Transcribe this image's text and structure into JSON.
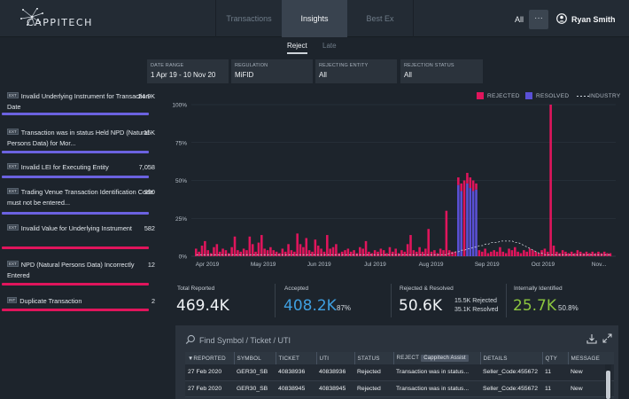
{
  "header": {
    "brand": "CAPPITECH",
    "tabs": [
      "Transactions",
      "Insights",
      "Best Ex"
    ],
    "scope": "All",
    "more": "···",
    "user": "Ryan Smith"
  },
  "subtabs": [
    "Reject",
    "Late"
  ],
  "filters": [
    {
      "label": "DATE RANGE",
      "value": "1 Apr 19 - 10 Nov 20"
    },
    {
      "label": "REGULATION",
      "value": "MiFID"
    },
    {
      "label": "REJECTING ENTITY",
      "value": "All"
    },
    {
      "label": "REJECTION STATUS",
      "value": "All"
    }
  ],
  "reject_reasons": [
    {
      "badge": "EXT",
      "text": "Invalid Underlying Instrument for Transaction Date",
      "count": "24.9K",
      "bar": "blue",
      "fill": 1.0
    },
    {
      "badge": "EXT",
      "text": "Transaction was in status Held NPD (Natural Persons Data) for Mor...",
      "count": "15K",
      "bar": "blue",
      "fill": 1.0
    },
    {
      "badge": "EXT",
      "text": "Invalid LEI for Executing Entity",
      "count": "7,058",
      "bar": "blue",
      "fill": 1.0
    },
    {
      "badge": "EXT",
      "text": "Trading Venue Transaction Identification Code must not be entered...",
      "count": "990",
      "bar": "blue",
      "fill": 1.0
    },
    {
      "badge": "EXT",
      "text": "Invalid Value for Underlying Instrument",
      "count": "582",
      "bar": "red",
      "fill": 1.0
    },
    {
      "badge": "EXT",
      "text": "NPD (Natural Persons Data) Incorrectly Entered",
      "count": "12",
      "bar": "red",
      "fill": 1.0
    },
    {
      "badge": "INT",
      "text": "Duplicate Transaction",
      "count": "2",
      "bar": "red",
      "fill": 1.0
    }
  ],
  "legend": {
    "rejected": "REJECTED",
    "resolved": "RESOLVED",
    "industry": "INDUSTRY"
  },
  "colors": {
    "rejected": "#e0155c",
    "resolved": "#5a50d6",
    "industry": "#cfd6de",
    "accepted": "#3f9fe0",
    "internal": "#8cc63f"
  },
  "chart_data": {
    "type": "bar",
    "y_unit": "%",
    "ylim": [
      0,
      100
    ],
    "y_ticks": [
      "100%",
      "75%",
      "50%",
      "25%",
      "0%"
    ],
    "x_ticks": [
      "Apr 2019",
      "May 2019",
      "Jun 2019",
      "Jul 2019",
      "Aug 2019",
      "Sep 2019",
      "Oct 2019",
      "Nov..."
    ],
    "series": [
      {
        "name": "REJECTED",
        "values": [
          5,
          3,
          7,
          10,
          4,
          2,
          6,
          8,
          3,
          5,
          4,
          2,
          6,
          13,
          4,
          3,
          5,
          4,
          13,
          8,
          3,
          9,
          14,
          5,
          4,
          6,
          4,
          3,
          2,
          5,
          3,
          8,
          4,
          3,
          15,
          8,
          6,
          12,
          4,
          3,
          11,
          7,
          5,
          3,
          14,
          5,
          6,
          8,
          2,
          3,
          4,
          5,
          3,
          4,
          2,
          6,
          5,
          10,
          3,
          2,
          4,
          3,
          5,
          4,
          2,
          6,
          3,
          5,
          2,
          4,
          3,
          8,
          14,
          4,
          3,
          6,
          3,
          5,
          18,
          3,
          4,
          2,
          5,
          4,
          30,
          4,
          3,
          3,
          52,
          48,
          50,
          55,
          52,
          50,
          48,
          4,
          3,
          5,
          2,
          3,
          4,
          3,
          6,
          3,
          2,
          5,
          4,
          6,
          3,
          2,
          4,
          3,
          5,
          4,
          3,
          2,
          4,
          5,
          3,
          100,
          7,
          3,
          2,
          4,
          3,
          2,
          3,
          2,
          4,
          3,
          2,
          3,
          2,
          3,
          2,
          3,
          2,
          3,
          2,
          2
        ]
      },
      {
        "name": "RESOLVED",
        "values": [
          0,
          0,
          0,
          0,
          0,
          0,
          0,
          0,
          0,
          0,
          0,
          0,
          0,
          0,
          0,
          0,
          0,
          0,
          0,
          0,
          0,
          0,
          0,
          0,
          0,
          0,
          0,
          0,
          0,
          0,
          0,
          0,
          0,
          0,
          0,
          0,
          0,
          0,
          0,
          0,
          0,
          0,
          0,
          0,
          0,
          0,
          0,
          0,
          0,
          0,
          0,
          0,
          0,
          0,
          0,
          0,
          0,
          0,
          0,
          0,
          0,
          0,
          0,
          0,
          0,
          0,
          0,
          0,
          0,
          0,
          0,
          0,
          0,
          0,
          0,
          0,
          0,
          0,
          0,
          0,
          0,
          0,
          0,
          0,
          0,
          0,
          0,
          0,
          47,
          43,
          0,
          48,
          45,
          43,
          44,
          0,
          0,
          0,
          0,
          0,
          0,
          0,
          0,
          0,
          0,
          0,
          0,
          0,
          0,
          0,
          0,
          0,
          0,
          0,
          0,
          0,
          0,
          0,
          0,
          0,
          0,
          0,
          0,
          0,
          0,
          0,
          0,
          0,
          0,
          0,
          0,
          0,
          0,
          0,
          0,
          0,
          0,
          0,
          0,
          0
        ]
      },
      {
        "name": "INDUSTRY",
        "values": [
          1,
          1,
          1,
          1,
          1,
          1,
          1,
          1,
          1,
          1,
          1,
          1,
          1,
          1,
          1,
          1,
          1,
          1,
          1,
          1,
          1,
          1,
          1,
          1,
          1,
          1,
          1,
          1,
          1,
          1,
          1,
          1,
          1,
          1,
          1,
          1,
          1,
          1,
          1,
          1,
          1,
          1,
          1,
          1,
          1,
          1,
          1,
          1,
          1,
          1,
          1,
          1,
          1,
          1,
          1,
          1,
          1,
          1,
          1,
          1,
          1,
          1,
          1,
          1,
          1,
          1,
          1,
          1,
          1,
          1,
          1,
          1,
          1,
          1,
          1,
          1,
          1,
          1,
          1,
          1,
          1,
          1,
          1,
          1,
          1,
          2,
          2,
          3,
          3,
          4,
          4,
          5,
          5,
          6,
          6,
          7,
          7,
          8,
          8,
          9,
          9,
          9,
          10,
          10,
          10,
          10,
          10,
          9,
          9,
          8,
          7,
          6,
          5,
          4,
          3,
          2,
          2,
          1,
          1,
          1,
          1,
          1,
          1,
          1,
          1,
          1,
          1,
          1,
          1,
          1,
          1,
          1,
          1,
          1,
          1,
          1,
          1,
          1,
          1,
          1
        ]
      }
    ]
  },
  "stats": {
    "total_label": "Total Reported",
    "total_value": "469.4K",
    "accepted_label": "Accepted",
    "accepted_value": "408.2K",
    "accepted_pct": "87%",
    "rr_label": "Rejected & Resolved",
    "rr_value": "50.6K",
    "rr_rejected": "15.5K Rejected",
    "rr_resolved": "35.1K Resolved",
    "ii_label": "Internally Identified",
    "ii_value": "25.7K",
    "ii_pct": "50.8%"
  },
  "table": {
    "search_placeholder": "Find Symbol / Ticket / UTI",
    "columns": [
      "▼REPORTED",
      "SYMBOL",
      "TICKET",
      "UTI",
      "STATUS",
      "REJECT",
      "DETAILS",
      "QTY",
      "MESSAGE"
    ],
    "assist_chip": "Cappitech Assist",
    "rows": [
      [
        "27 Feb 2020",
        "GER30_SB",
        "40838936",
        "40838936",
        "Rejected",
        "Transaction was in status...",
        "Seller_Code:455672",
        "11",
        "New"
      ],
      [
        "27 Feb 2020",
        "GER30_SB",
        "40838945",
        "40838945",
        "Rejected",
        "Transaction was in status...",
        "Seller_Code:455672",
        "11",
        "New"
      ]
    ]
  }
}
